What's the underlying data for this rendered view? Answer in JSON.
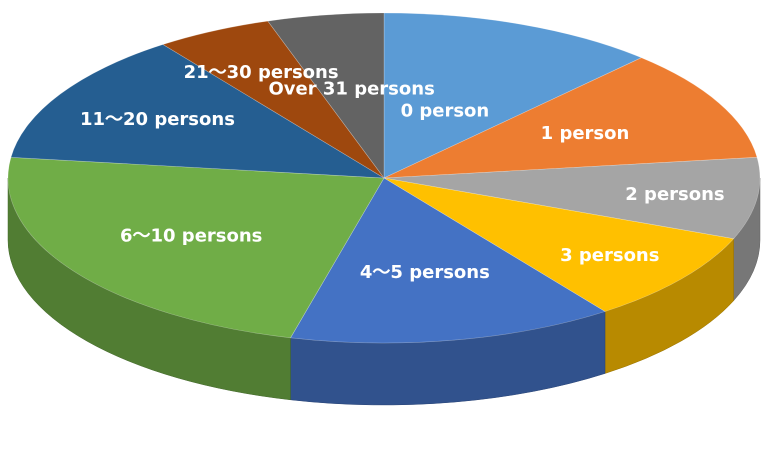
{
  "chart_data": {
    "type": "pie",
    "style": "3d",
    "title": "",
    "categories": [
      "0 person",
      "1 person",
      "2 persons",
      "3 persons",
      "4～5 persons",
      "6～10 persons",
      "11～20 persons",
      "21～30 persons",
      "Over 31 persons"
    ],
    "values": [
      12,
      11,
      8,
      9,
      14,
      23,
      13,
      5,
      5
    ],
    "unit": "%",
    "colors": [
      "#5B9BD5",
      "#ED7D31",
      "#A5A5A5",
      "#FFC000",
      "#4472C4",
      "#70AD47",
      "#255E91",
      "#9E480E",
      "#636363"
    ],
    "legend": "none",
    "labels_inside": true
  }
}
